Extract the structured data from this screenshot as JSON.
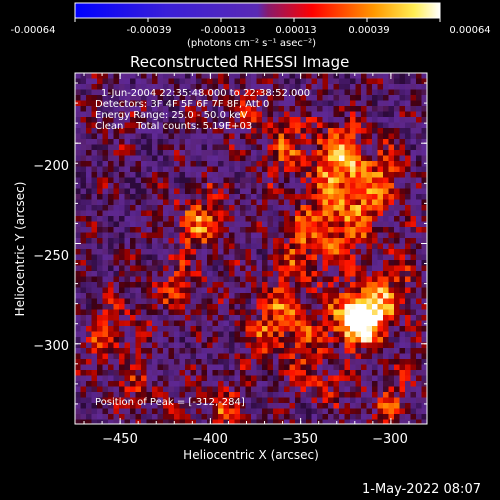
{
  "colorbar": {
    "tick_labels": [
      "-0.00064",
      "-0.00039",
      "-0.00013",
      "0.00013",
      "0.00039",
      "0.00064"
    ],
    "units_label": "(photons cm⁻² s⁻¹ asec⁻²)",
    "range": [
      -0.00064,
      0.00064
    ]
  },
  "chart_data": {
    "type": "heatmap",
    "title": "Reconstructed RHESSI Image",
    "xlabel": "Heliocentric X (arcsec)",
    "ylabel": "Heliocentric Y (arcsec)",
    "xlim": [
      -475,
      -280
    ],
    "ylim": [
      -340,
      -165
    ],
    "x_ticks": [
      -450,
      -400,
      -350,
      -300
    ],
    "y_ticks": [
      -200,
      -250,
      -300
    ],
    "x_tick_labels": [
      "−450",
      "−400",
      "−350",
      "−300"
    ],
    "y_tick_labels": [
      "−200",
      "−250",
      "−300"
    ],
    "peak": {
      "x": -312,
      "y": -284
    },
    "annotations": {
      "time": "1-Jun-2004 22:35:48.000 to 22:38:52.000",
      "detectors": "Detectors: 3F 4F 5F 6F 7F 8F, Att 0",
      "energy": "Energy Range: 25.0 - 50.0 keV",
      "clean": "Clean    Total counts: 5.19E+03",
      "peak_label": "Position of Peak = [-312,-284]"
    },
    "colormap": "RHESSI blue-purple-red-yellow-white",
    "colors": [
      "#0000ff",
      "#5a2ab4",
      "#ff0000",
      "#ff9900",
      "#ffffff"
    ]
  },
  "footer": {
    "date": "1-May-2022 08:07"
  }
}
